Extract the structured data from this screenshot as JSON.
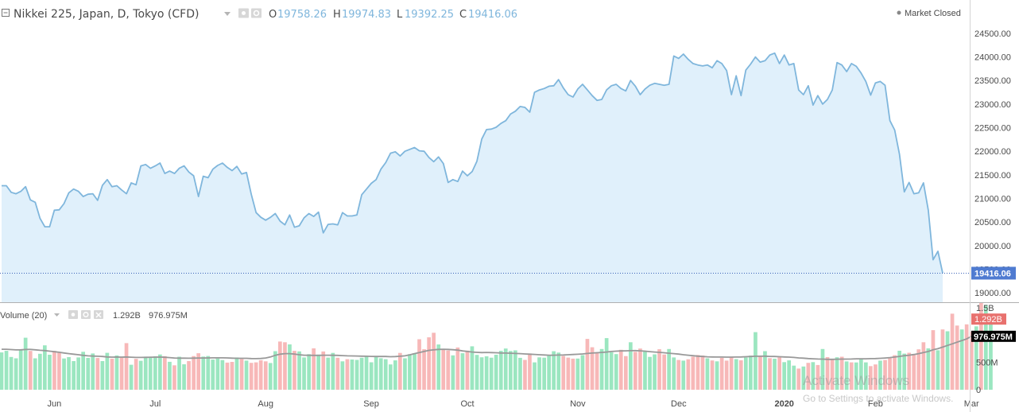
{
  "header": {
    "symbol": "Nikkei 225, Japan, D, Tokyo (CFD)",
    "o_label": "O",
    "o_value": "19758.26",
    "h_label": "H",
    "h_value": "19974.83",
    "l_label": "L",
    "l_value": "19392.25",
    "c_label": "C",
    "c_value": "19416.06",
    "market_status": "Market Closed"
  },
  "volume_header": {
    "title": "Volume (20)",
    "value": "1.292B",
    "ma_value": "976.975M"
  },
  "watermark": {
    "line1": "Activate Windows",
    "line2": "Go to Settings to activate Windows."
  },
  "colors": {
    "line": "#7fb6dc",
    "fill": "#e0f0fb",
    "up": "#9be6c0",
    "down": "#f7b8b8",
    "vol_ma": "#999999",
    "last_price_tag": "#4f7bd1",
    "vol_tag": "#e8716e",
    "ma_tag": "#000000"
  },
  "chart_data": {
    "type": "area",
    "price_axis": {
      "ticks": [
        "24500.00",
        "24000.00",
        "23500.00",
        "23000.00",
        "22500.00",
        "22000.00",
        "21500.00",
        "21000.00",
        "20500.00",
        "20000.00",
        "19500.00",
        "19000.00"
      ],
      "tick_values": [
        24500,
        24000,
        23500,
        23000,
        22500,
        22000,
        21500,
        21000,
        20500,
        20000,
        19500,
        19000
      ],
      "range": [
        18800,
        24600
      ],
      "last_value": 19416.06,
      "last_label": "19416.06"
    },
    "volume_axis": {
      "ticks": [
        "1.5B",
        "500M",
        "0"
      ],
      "tick_values": [
        1500,
        500,
        0
      ],
      "range": [
        0,
        1600
      ],
      "last_value": 1292,
      "last_label": "1.292B",
      "ma_last_value": 977,
      "ma_last_label": "976.975M"
    },
    "x_labels": [
      {
        "label": "Jun",
        "index": 11
      },
      {
        "label": "Jul",
        "index": 32
      },
      {
        "label": "Aug",
        "index": 55
      },
      {
        "label": "Sep",
        "index": 77
      },
      {
        "label": "Oct",
        "index": 97
      },
      {
        "label": "Nov",
        "index": 120
      },
      {
        "label": "Dec",
        "index": 141
      },
      {
        "label": "2020",
        "index": 163
      },
      {
        "label": "Feb",
        "index": 182
      },
      {
        "label": "Mar",
        "index": 202
      }
    ],
    "series": [
      {
        "values": [
          21270,
          21270,
          21130,
          21100,
          21150,
          21250,
          20970,
          20920,
          20580,
          20400,
          20400,
          20750,
          20760,
          20890,
          21120,
          21200,
          21150,
          21040,
          21090,
          21100,
          20960,
          21280,
          21400,
          21250,
          21270,
          21180,
          21100,
          21330,
          21290,
          21690,
          21720,
          21640,
          21690,
          21750,
          21530,
          21580,
          21530,
          21640,
          21690,
          21560,
          21480,
          21040,
          21470,
          21440,
          21620,
          21700,
          21750,
          21660,
          21590,
          21680,
          21520,
          21550,
          21090,
          20700,
          20600,
          20540,
          20600,
          20680,
          20520,
          20440,
          20650,
          20390,
          20420,
          20590,
          20680,
          20620,
          20710,
          20270,
          20450,
          20460,
          20440,
          20700,
          20630,
          20630,
          20650,
          21080,
          21200,
          21320,
          21400,
          21620,
          21760,
          21960,
          21990,
          21900,
          22000,
          22040,
          22080,
          22010,
          22000,
          21870,
          21780,
          21880,
          21740,
          21340,
          21400,
          21360,
          21580,
          21480,
          21570,
          21790,
          22260,
          22460,
          22470,
          22510,
          22590,
          22650,
          22790,
          22850,
          22950,
          22930,
          22830,
          23250,
          23300,
          23330,
          23380,
          23390,
          23520,
          23340,
          23200,
          23150,
          23320,
          23420,
          23300,
          23180,
          23080,
          23100,
          23300,
          23390,
          23420,
          23330,
          23280,
          23500,
          23380,
          23200,
          23320,
          23400,
          23440,
          23420,
          23400,
          23420,
          24020,
          23970,
          24060,
          23950,
          23860,
          23830,
          23810,
          23830,
          23770,
          23920,
          23860,
          23710,
          23200,
          23600,
          23180,
          23720,
          23850,
          24000,
          23890,
          23920,
          24040,
          24080,
          23860,
          24040,
          23830,
          23860,
          23300,
          23200,
          23390,
          22980,
          23180,
          23000,
          23100,
          23300,
          23880,
          23830,
          23690,
          23860,
          23800,
          23660,
          23480,
          23190,
          23450,
          23480,
          23400,
          22650,
          22450,
          21940,
          21140,
          21340,
          21100,
          21120,
          21330,
          20750,
          19700,
          19880,
          19416
        ]
      },
      {
        "name": "Volume (20)",
        "values": [
          682,
          712,
          600,
          574,
          725,
          951,
          710,
          574,
          657,
          812,
          640,
          711,
          676,
          572,
          596,
          524,
          590,
          694,
          582,
          664,
          580,
          524,
          675,
          569,
          627,
          591,
          853,
          456,
          564,
          529,
          605,
          597,
          613,
          645,
          614,
          510,
          447,
          604,
          465,
          524,
          615,
          667,
          607,
          617,
          552,
          571,
          543,
          496,
          509,
          590,
          562,
          532,
          492,
          500,
          540,
          519,
          488,
          705,
          881,
          869,
          829,
          712,
          701,
          591,
          650,
          756,
          643,
          700,
          587,
          674,
          585,
          519,
          558,
          553,
          546,
          585,
          616,
          502,
          610,
          576,
          558,
          463,
          537,
          673,
          574,
          650,
          668,
          923,
          741,
          958,
          1042,
          828,
          746,
          718,
          628,
          773,
          668,
          716,
          794,
          637,
          594,
          611,
          586,
          640,
          711,
          754,
          709,
          720,
          584,
          546,
          664,
          501,
          592,
          586,
          637,
          704,
          680,
          617,
          588,
          568,
          570,
          633,
          929,
          776,
          686,
          745,
          944,
          685,
          651,
          730,
          615,
          868,
          692,
          754,
          710,
          601,
          647,
          741,
          644,
          745,
          591,
          544,
          532,
          557,
          605,
          635,
          626,
          575,
          535,
          520,
          584,
          532,
          595,
          560,
          538,
          590,
          624,
          1053,
          609,
          705,
          577,
          567,
          592,
          505,
          536,
          441,
          387,
          425,
          491,
          505,
          453,
          745,
          596,
          547,
          593,
          604,
          518,
          501,
          499,
          576,
          500,
          432,
          463,
          532,
          544,
          592,
          631,
          713,
          660,
          676,
          655,
          739,
          869,
          757,
          1089,
          722,
          1102,
          1069,
          1390,
          1174,
          1102,
          1195,
          1066,
          1160,
          1592,
          1550,
          1292
        ],
        "down": [
          0,
          0,
          0,
          0,
          0,
          0,
          1,
          0,
          0,
          0,
          0,
          1,
          1,
          0,
          0,
          0,
          0,
          0,
          0,
          0,
          1,
          0,
          0,
          1,
          0,
          1,
          1,
          0,
          1,
          0,
          0,
          0,
          0,
          0,
          1,
          0,
          1,
          0,
          0,
          1,
          1,
          1,
          0,
          0,
          0,
          0,
          0,
          1,
          1,
          0,
          1,
          0,
          1,
          1,
          1,
          1,
          0,
          0,
          1,
          1,
          0,
          1,
          0,
          0,
          0,
          1,
          0,
          1,
          0,
          0,
          1,
          0,
          1,
          0,
          0,
          0,
          0,
          0,
          0,
          0,
          0,
          0,
          0,
          1,
          0,
          0,
          0,
          1,
          1,
          1,
          1,
          0,
          1,
          1,
          0,
          1,
          0,
          1,
          0,
          0,
          0,
          0,
          0,
          0,
          0,
          0,
          0,
          0,
          0,
          1,
          1,
          0,
          0,
          0,
          0,
          0,
          0,
          1,
          1,
          1,
          0,
          0,
          1,
          1,
          1,
          0,
          0,
          0,
          0,
          1,
          1,
          0,
          1,
          1,
          0,
          0,
          0,
          1,
          1,
          0,
          0,
          1,
          0,
          1,
          1,
          1,
          1,
          0,
          1,
          0,
          1,
          1,
          1,
          0,
          1,
          0,
          0,
          0,
          1,
          0,
          1,
          0,
          1,
          0,
          0,
          0,
          1,
          0,
          1,
          0,
          1,
          0,
          1,
          1,
          0,
          1,
          0,
          1,
          0,
          0,
          0,
          1,
          1,
          0,
          1,
          1,
          1,
          0,
          0,
          1,
          1,
          1,
          1,
          0,
          1,
          0,
          1,
          0,
          1,
          1,
          0,
          1,
          1,
          0,
          1
        ]
      },
      {
        "name": "MA",
        "values": [
          740,
          740,
          735,
          728,
          730,
          736,
          738,
          730,
          722,
          715,
          705,
          695,
          685,
          672,
          660,
          650,
          640,
          628,
          620,
          615,
          612,
          608,
          600,
          596,
          598,
          596,
          600,
          595,
          590,
          590,
          592,
          595,
          596,
          598,
          594,
          588,
          580,
          578,
          578,
          576,
          578,
          580,
          580,
          582,
          584,
          584,
          584,
          582,
          578,
          575,
          575,
          574,
          570,
          568,
          572,
          580,
          600,
          630,
          650,
          660,
          660,
          652,
          640,
          632,
          630,
          628,
          628,
          632,
          632,
          630,
          628,
          624,
          620,
          618,
          616,
          614,
          612,
          610,
          608,
          608,
          608,
          604,
          606,
          612,
          620,
          638,
          660,
          680,
          700,
          720,
          730,
          738,
          740,
          738,
          732,
          724,
          710,
          700,
          690,
          684,
          680,
          682,
          680,
          676,
          672,
          670,
          668,
          664,
          660,
          655,
          650,
          646,
          640,
          636,
          632,
          632,
          634,
          636,
          640,
          644,
          648,
          654,
          664,
          670,
          676,
          682,
          690,
          700,
          706,
          710,
          712,
          714,
          716,
          712,
          706,
          696,
          690,
          684,
          676,
          668,
          660,
          652,
          640,
          632,
          622,
          614,
          608,
          602,
          600,
          598,
          598,
          596,
          596,
          598,
          600,
          604,
          608,
          612,
          612,
          614,
          610,
          608,
          604,
          600,
          596,
          590,
          582,
          578,
          570,
          566,
          562,
          560,
          556,
          556,
          558,
          560,
          560,
          562,
          566,
          566,
          566,
          568,
          570,
          574,
          580,
          588,
          598,
          610,
          622,
          632,
          644,
          660,
          680,
          700,
          730,
          750,
          780,
          810,
          840,
          870,
          900,
          930,
          977
        ]
      }
    ]
  }
}
